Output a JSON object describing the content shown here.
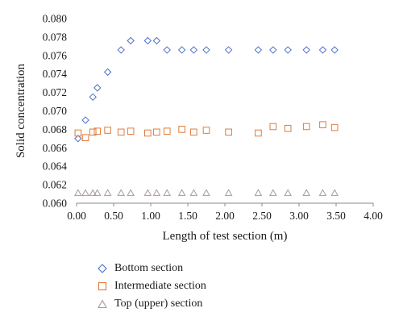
{
  "chart_data": {
    "type": "scatter",
    "title": "",
    "xlabel": "Length of test section (m)",
    "ylabel": "Solid concentration",
    "xlim": [
      0,
      4
    ],
    "ylim": [
      0.06,
      0.08
    ],
    "x_ticks": [
      "0.00",
      "0.50",
      "1.00",
      "1.50",
      "2.00",
      "2.50",
      "3.00",
      "3.50",
      "4.00"
    ],
    "y_ticks": [
      "0.060",
      "0.062",
      "0.064",
      "0.066",
      "0.068",
      "0.070",
      "0.072",
      "0.074",
      "0.076",
      "0.078",
      "0.080"
    ],
    "grid": false,
    "legend_position": "bottom",
    "series": [
      {
        "name": "Bottom section",
        "marker": "diamond",
        "color": "#4a6fc7",
        "x": [
          0.02,
          0.12,
          0.22,
          0.28,
          0.42,
          0.6,
          0.73,
          0.96,
          1.08,
          1.22,
          1.42,
          1.58,
          1.75,
          2.05,
          2.45,
          2.65,
          2.85,
          3.1,
          3.32,
          3.48
        ],
        "y": [
          0.067,
          0.069,
          0.0715,
          0.0725,
          0.0742,
          0.0766,
          0.0776,
          0.0776,
          0.0776,
          0.0766,
          0.0766,
          0.0766,
          0.0766,
          0.0766,
          0.0766,
          0.0766,
          0.0766,
          0.0766,
          0.0766,
          0.0766
        ]
      },
      {
        "name": "Intermediate section",
        "marker": "square",
        "color": "#e07a3c",
        "x": [
          0.02,
          0.12,
          0.22,
          0.28,
          0.42,
          0.6,
          0.73,
          0.96,
          1.08,
          1.22,
          1.42,
          1.58,
          1.75,
          2.05,
          2.45,
          2.65,
          2.85,
          3.1,
          3.32,
          3.48
        ],
        "y": [
          0.0676,
          0.0671,
          0.0677,
          0.0678,
          0.0679,
          0.0677,
          0.0678,
          0.0676,
          0.0677,
          0.0678,
          0.068,
          0.0677,
          0.0679,
          0.0677,
          0.0676,
          0.0683,
          0.0681,
          0.0683,
          0.0685,
          0.0682
        ]
      },
      {
        "name": "Top (upper) section",
        "marker": "triangle",
        "color": "#a89a98",
        "x": [
          0.02,
          0.12,
          0.22,
          0.28,
          0.42,
          0.6,
          0.73,
          0.96,
          1.08,
          1.22,
          1.42,
          1.58,
          1.75,
          2.05,
          2.45,
          2.65,
          2.85,
          3.1,
          3.32,
          3.48
        ],
        "y": [
          0.0611,
          0.0611,
          0.0611,
          0.0611,
          0.0611,
          0.0611,
          0.0611,
          0.0611,
          0.0611,
          0.0611,
          0.0611,
          0.0611,
          0.0611,
          0.0611,
          0.0611,
          0.0611,
          0.0611,
          0.0611,
          0.0611,
          0.0611
        ]
      }
    ]
  }
}
